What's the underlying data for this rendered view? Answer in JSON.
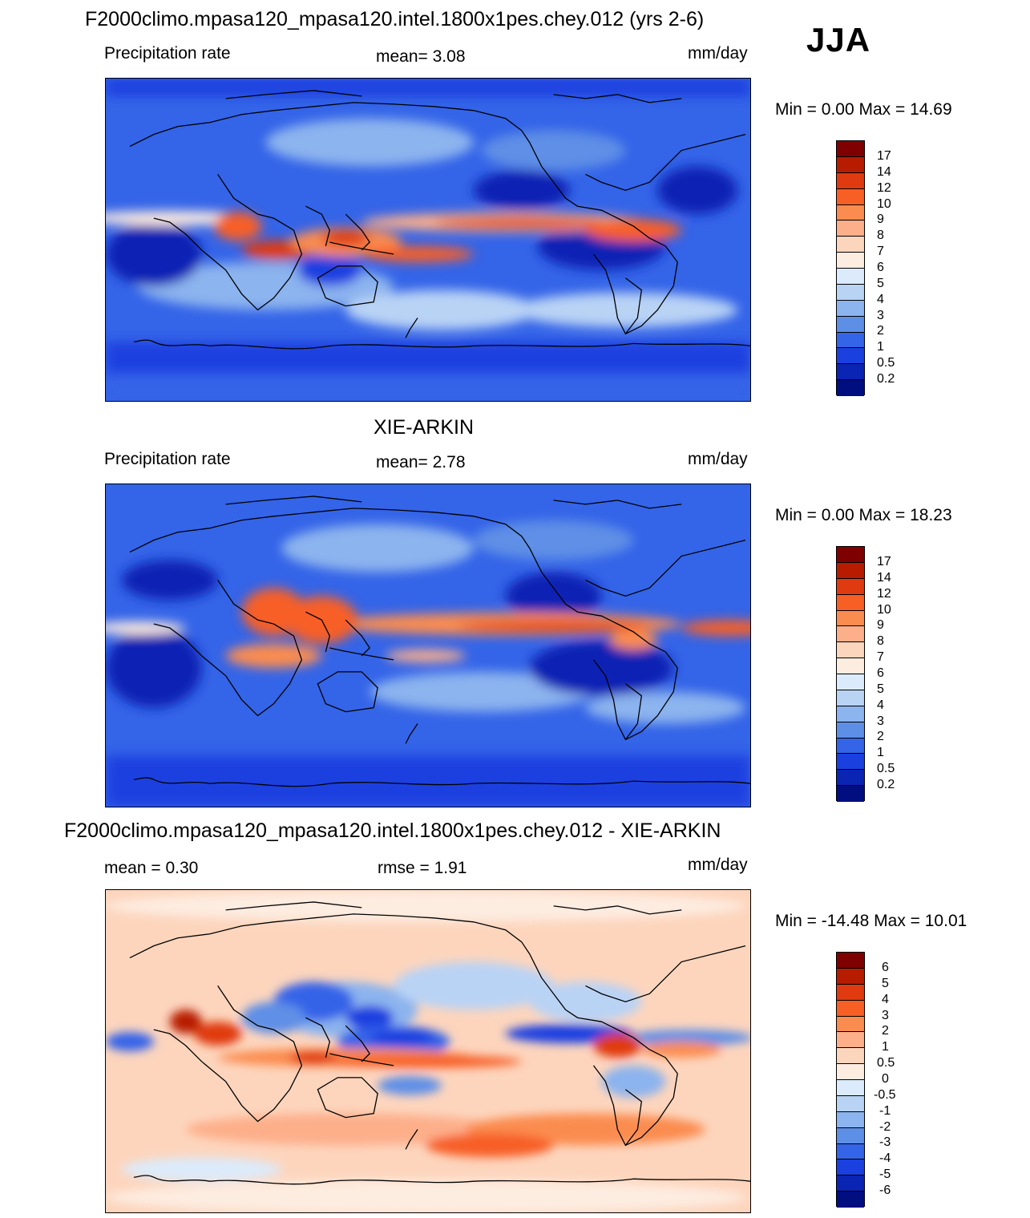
{
  "season": "JJA",
  "panels": [
    {
      "title": "F2000climo.mpasa120_mpasa120.intel.1800x1pes.chey.012 (yrs 2-6)",
      "left_label": "Precipitation rate",
      "center_label": "mean=   3.08",
      "units": "mm/day",
      "minmax": "Min =    0.00 Max =  14.69",
      "colorbar_labels": [
        "17",
        "14",
        "12",
        "10",
        "9",
        "8",
        "7",
        "6",
        "5",
        "4",
        "3",
        "2",
        "1",
        "0.5",
        "0.2"
      ],
      "colorbar_colors": [
        "#7f0000",
        "#b71c00",
        "#e03a10",
        "#f75f25",
        "#fb8c50",
        "#fdaf8a",
        "#fcd5bd",
        "#fdece0",
        "#dcebfb",
        "#b9d3f5",
        "#8cb4ee",
        "#5e8fe6",
        "#3464e8",
        "#1a40e0",
        "#0a24b4",
        "#000e80"
      ]
    },
    {
      "title": "XIE-ARKIN",
      "left_label": "Precipitation rate",
      "center_label": "mean=   2.78",
      "units": "mm/day",
      "minmax": "Min =    0.00 Max =  18.23",
      "colorbar_labels": [
        "17",
        "14",
        "12",
        "10",
        "9",
        "8",
        "7",
        "6",
        "5",
        "4",
        "3",
        "2",
        "1",
        "0.5",
        "0.2"
      ],
      "colorbar_colors": [
        "#7f0000",
        "#b71c00",
        "#e03a10",
        "#f75f25",
        "#fb8c50",
        "#fdaf8a",
        "#fcd5bd",
        "#fdece0",
        "#dcebfb",
        "#b9d3f5",
        "#8cb4ee",
        "#5e8fe6",
        "#3464e8",
        "#1a40e0",
        "#0a24b4",
        "#000e80"
      ]
    },
    {
      "title": "F2000climo.mpasa120_mpasa120.intel.1800x1pes.chey.012 - XIE-ARKIN",
      "left_label": "mean =   0.30",
      "center_label": "rmse =   1.91",
      "units": "mm/day",
      "minmax": "Min = -14.48 Max =  10.01",
      "colorbar_labels": [
        "6",
        "5",
        "4",
        "3",
        "2",
        "1",
        "0.5",
        "0",
        "-0.5",
        "-1",
        "-2",
        "-3",
        "-4",
        "-5",
        "-6"
      ],
      "colorbar_colors": [
        "#7f0000",
        "#b71c00",
        "#e03a10",
        "#f75f25",
        "#fb8c50",
        "#fdaf8a",
        "#fcd5bd",
        "#fdece0",
        "#dcebfb",
        "#b9d3f5",
        "#8cb4ee",
        "#5e8fe6",
        "#3464e8",
        "#1a40e0",
        "#0a24b4",
        "#000e80"
      ]
    }
  ]
}
